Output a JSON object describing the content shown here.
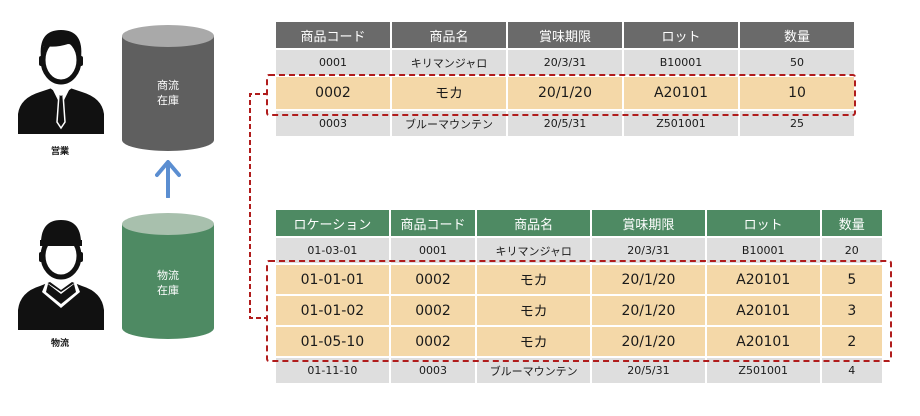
{
  "sales_person": {
    "label": "営業"
  },
  "logistics_person": {
    "label": "物流"
  },
  "commercial_stock": {
    "label_line1": "商流",
    "label_line2": "在庫",
    "color": "#5f5f5f"
  },
  "logistics_stock": {
    "label_line1": "物流",
    "label_line2": "在庫",
    "color": "#4e8a63"
  },
  "accent_colors": {
    "highlight": "#f4d8a8",
    "dashed": "#b01c1c",
    "arrow": "#5b8ed1"
  },
  "top_table": {
    "headers": [
      "商品コード",
      "商品名",
      "賞味期限",
      "ロット",
      "数量"
    ],
    "rows": [
      [
        "0001",
        "キリマンジャロ",
        "20/3/31",
        "B10001",
        "50"
      ],
      [
        "0002",
        "モカ",
        "20/1/20",
        "A20101",
        "10"
      ],
      [
        "0003",
        "ブルーマウンテン",
        "20/5/31",
        "Z501001",
        "25"
      ]
    ]
  },
  "bottom_table": {
    "headers": [
      "ロケーション",
      "商品コード",
      "商品名",
      "賞味期限",
      "ロット",
      "数量"
    ],
    "rows": [
      [
        "01-03-01",
        "0001",
        "キリマンジャロ",
        "20/3/31",
        "B10001",
        "20"
      ],
      [
        "01-01-01",
        "0002",
        "モカ",
        "20/1/20",
        "A20101",
        "5"
      ],
      [
        "01-01-02",
        "0002",
        "モカ",
        "20/1/20",
        "A20101",
        "3"
      ],
      [
        "01-05-10",
        "0002",
        "モカ",
        "20/1/20",
        "A20101",
        "2"
      ],
      [
        "01-11-10",
        "0003",
        "ブルーマウンテン",
        "20/5/31",
        "Z501001",
        "4"
      ]
    ]
  }
}
